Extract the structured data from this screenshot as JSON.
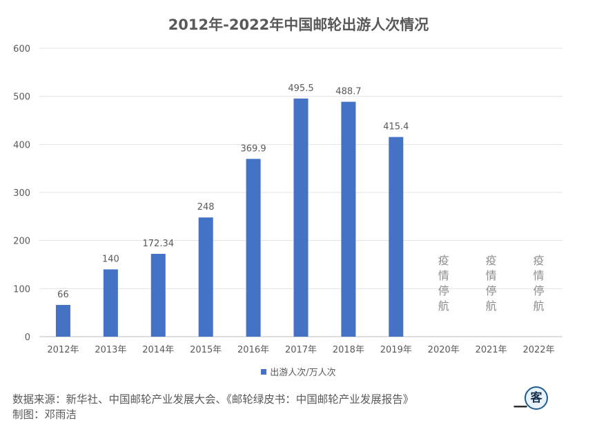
{
  "chart_data": {
    "type": "bar",
    "title": "2012年-2022年中国邮轮出游人次情况",
    "categories": [
      "2012年",
      "2013年",
      "2014年",
      "2015年",
      "2016年",
      "2017年",
      "2018年",
      "2019年",
      "2020年",
      "2021年",
      "2022年"
    ],
    "series": [
      {
        "name": "出游人次/万人次",
        "values": [
          66,
          140,
          172.34,
          248,
          369.9,
          495.5,
          488.7,
          415.4,
          null,
          null,
          null
        ],
        "data_labels": [
          "66",
          "140",
          "172.34",
          "248",
          "369.9",
          "495.5",
          "488.7",
          "415.4",
          "",
          "",
          ""
        ],
        "color": "#4472c4"
      }
    ],
    "annotations": [
      {
        "category": "2020年",
        "text": "疫情停航"
      },
      {
        "category": "2021年",
        "text": "疫情停航"
      },
      {
        "category": "2022年",
        "text": "疫情停航"
      }
    ],
    "yticks": [
      "0",
      "100",
      "200",
      "300",
      "400",
      "500",
      "600"
    ],
    "ylim": [
      0,
      600
    ],
    "grid": true,
    "legend_position": "bottom"
  },
  "footer": {
    "source": "数据来源：新华社、中国邮轮产业发展大会、《邮轮绿皮书：中国邮轮产业发展报告》",
    "author": "制图：邓雨洁"
  },
  "logo": {
    "dash": "一",
    "char": "客"
  }
}
